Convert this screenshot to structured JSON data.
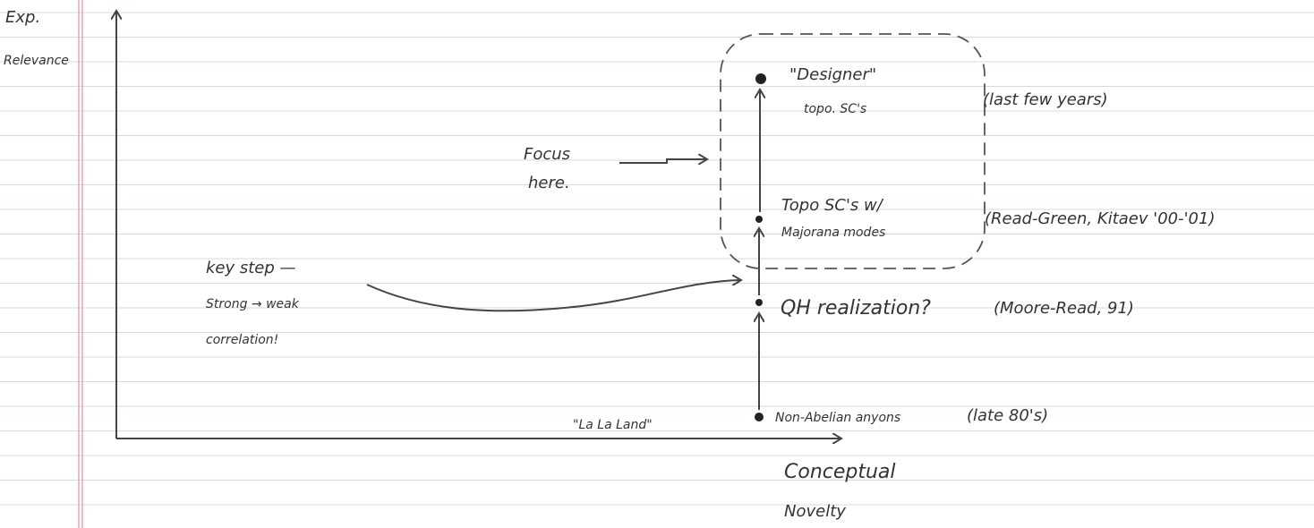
{
  "axes": {
    "y_label": [
      "Exp.",
      "Relevance"
    ],
    "x_label": [
      "Conceptual",
      "Novelty"
    ]
  },
  "nodes": [
    {
      "label": [
        "\"Designer\"",
        "topo. SC's"
      ],
      "note": "(last few years)"
    },
    {
      "label": [
        "Topo SC's w/",
        "Majorana modes"
      ],
      "note": "(Read-Green, Kitaev '00-'01)"
    },
    {
      "label": [
        "QH realization?"
      ],
      "note": "(Moore-Read, 91)"
    },
    {
      "label": [
        "Non-Abelian anyons"
      ],
      "note": "(late 80's)"
    }
  ],
  "annotations": {
    "focus": [
      "Focus",
      "here."
    ],
    "key_step": [
      "key step —",
      "Strong → weak",
      "correlation!"
    ],
    "la_la_land": "\"La La Land\""
  }
}
